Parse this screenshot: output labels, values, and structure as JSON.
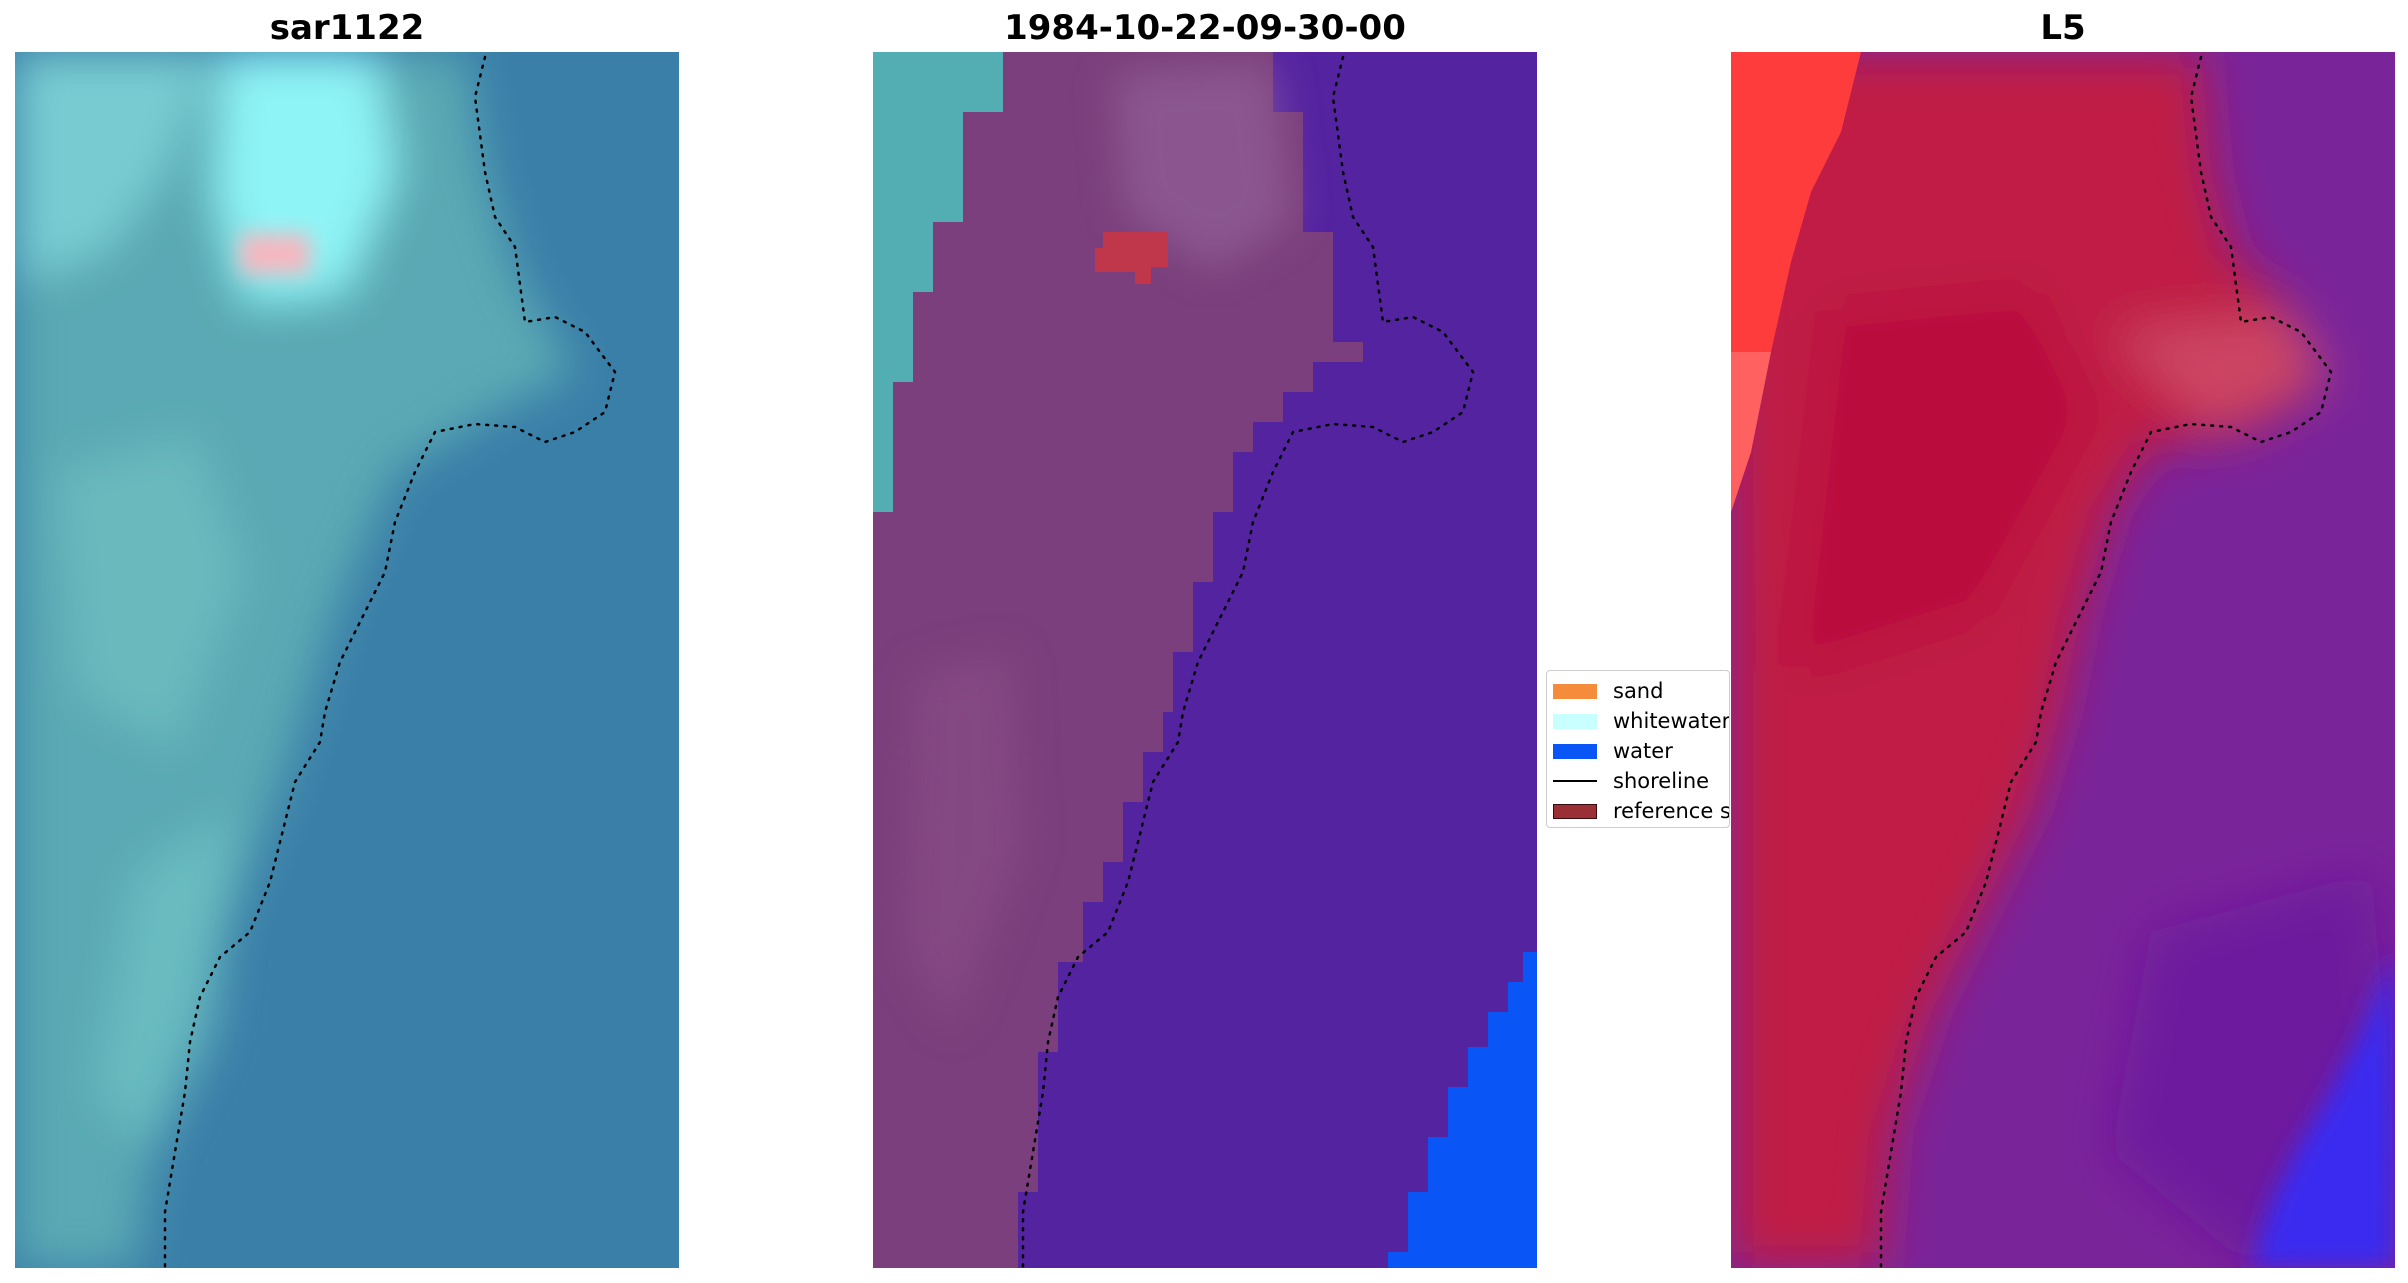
{
  "panels": [
    {
      "title": "sar1122",
      "image": "rgb-composite-satellite-image"
    },
    {
      "title": "1984-10-22-09-30-00",
      "image": "classified-image-overlay"
    },
    {
      "title": "L5",
      "image": "false-color-satellite-image"
    }
  ],
  "legend": {
    "items": [
      {
        "label": "sand",
        "color": "#f58c3c",
        "kind": "patch"
      },
      {
        "label": "whitewater",
        "color": "#c8ffff",
        "kind": "patch"
      },
      {
        "label": "water",
        "color": "#0a55f5",
        "kind": "patch"
      },
      {
        "label": "shoreline",
        "color": "#000000",
        "kind": "line"
      },
      {
        "label": "reference s",
        "color": "#9a2f36",
        "kind": "patch"
      }
    ]
  },
  "colors": {
    "panel1_base": "#3a7fa8",
    "panel1_land": "#5aa9b4",
    "panel1_bright": "#8ff4f6",
    "panel1_red_patch": "#f7b7c0",
    "panel2_land": "#7a3f7c",
    "panel2_water": "#5423a0",
    "panel2_deep": "#0a55f5",
    "panel2_whitewater": "#52aeb3",
    "panel2_red_patch": "#c0364a",
    "panel3_land": "#c01a45",
    "panel3_sea": "#7a249a",
    "panel3_deep": "#3a2cf0",
    "panel3_strip": "#ff3c3c",
    "shoreline": "#000000"
  }
}
